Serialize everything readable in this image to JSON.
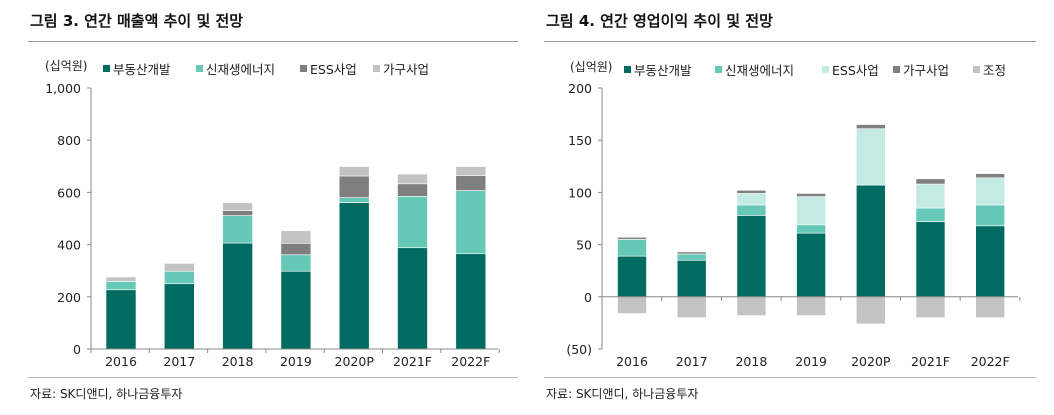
{
  "chart_data": [
    {
      "type": "bar",
      "stacked": true,
      "title": "그림 3. 연간 매출액 추이 및 전망",
      "unit_label": "(십억원)",
      "source": "자료: SK디앤디, 하나금융투자",
      "categories": [
        "2016",
        "2017",
        "2018",
        "2019",
        "2020P",
        "2021F",
        "2022F"
      ],
      "ylim": [
        0,
        1000
      ],
      "yticks": [
        0,
        200,
        400,
        600,
        800,
        1000
      ],
      "ytick_labels": [
        "0",
        "200",
        "400",
        "600",
        "800",
        "1,000"
      ],
      "legend_position": "top",
      "series": [
        {
          "name": "부동산개발",
          "color": "#006B60",
          "values": [
            227,
            250,
            406,
            298,
            561,
            388,
            365
          ]
        },
        {
          "name": "신재생에너지",
          "color": "#66C9B8",
          "values": [
            32,
            48,
            105,
            63,
            19,
            197,
            242
          ]
        },
        {
          "name": "ESS사업",
          "color": "#7F7F7F",
          "values": [
            0,
            0,
            19,
            44,
            83,
            48,
            57
          ]
        },
        {
          "name": "가구사업",
          "color": "#C3C3C3",
          "values": [
            17,
            30,
            31,
            48,
            36,
            37,
            35
          ]
        }
      ]
    },
    {
      "type": "bar",
      "stacked": true,
      "title": "그림 4. 연간 영업이익 추이 및 전망",
      "unit_label": "(십억원)",
      "source": "자료: SK디앤디, 하나금융투자",
      "categories": [
        "2016",
        "2017",
        "2018",
        "2019",
        "2020P",
        "2021F",
        "2022F"
      ],
      "ylim": [
        -50,
        200
      ],
      "yticks": [
        -50,
        0,
        50,
        100,
        150,
        200
      ],
      "ytick_labels": [
        "(50)",
        "0",
        "50",
        "100",
        "150",
        "200"
      ],
      "legend_position": "top",
      "series": [
        {
          "name": "부동산개발",
          "color": "#006B60",
          "values": [
            39,
            35,
            78,
            61,
            107,
            72,
            68
          ]
        },
        {
          "name": "신재생에너지",
          "color": "#66C9B8",
          "values": [
            16,
            6,
            10,
            8,
            0,
            13,
            20
          ]
        },
        {
          "name": "ESS사업",
          "color": "#C4EAE4",
          "values": [
            0,
            0,
            11,
            27,
            54,
            23,
            26
          ]
        },
        {
          "name": "가구사업",
          "color": "#7F7F7F",
          "values": [
            2,
            2,
            3,
            3,
            4,
            5,
            4
          ]
        },
        {
          "name": "조정",
          "color": "#C3C3C3",
          "values": [
            -16,
            -20,
            -18,
            -18,
            -26,
            -20,
            -20
          ]
        }
      ]
    }
  ]
}
